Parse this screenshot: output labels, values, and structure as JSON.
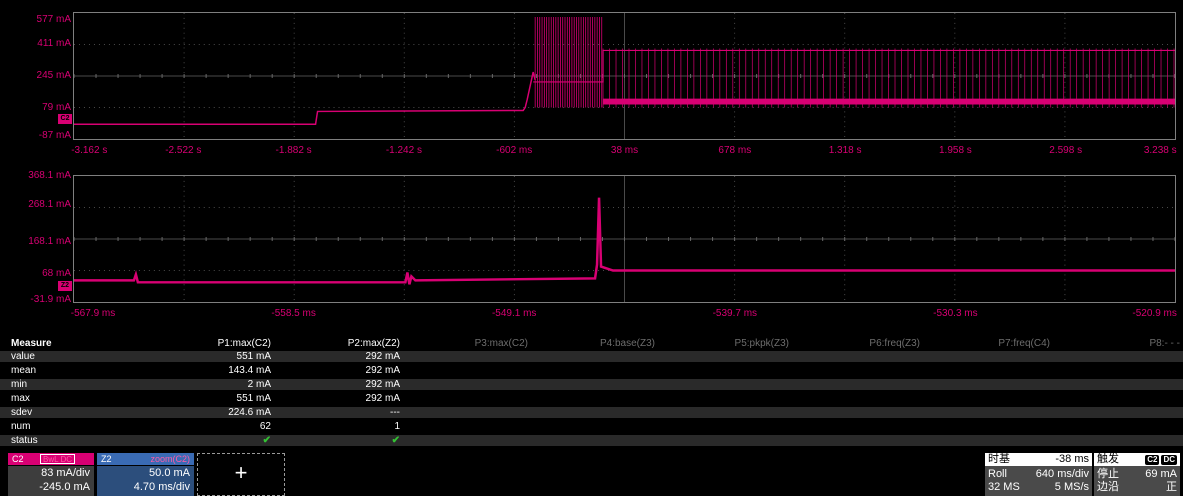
{
  "colors": {
    "trace": "#d80073",
    "background": "#000000",
    "grid": "#7f7f7f",
    "check": "#34c234",
    "zoom_accent": "#3a6bb4"
  },
  "top_grid": {
    "channel_marker": "C2",
    "y_labels": [
      "577 mA",
      "411 mA",
      "245 mA",
      "79 mA",
      "-87 mA"
    ],
    "x_labels": [
      "-3.162 s",
      "-2.522 s",
      "-1.882 s",
      "-1.242 s",
      "-602 ms",
      "38 ms",
      "678 ms",
      "1.318 s",
      "1.958 s",
      "2.598 s",
      "3.238 s"
    ]
  },
  "zoom_grid": {
    "channel_marker": "Z2",
    "y_labels": [
      "368.1 mA",
      "268.1 mA",
      "168.1 mA",
      "68 mA",
      "-31.9 mA"
    ],
    "x_labels": [
      "-567.9 ms",
      "-558.5 ms",
      "-549.1 ms",
      "-539.7 ms",
      "-530.3 ms",
      "-520.9 ms"
    ]
  },
  "measure": {
    "header": "Measure",
    "params": [
      "P1:max(C2)",
      "P2:max(Z2)",
      "P3:max(C2)",
      "P4:base(Z3)",
      "P5:pkpk(Z3)",
      "P6:freq(Z3)",
      "P7:freq(C4)",
      "P8:- - -"
    ],
    "rows": [
      {
        "label": "value",
        "p1": "551 mA",
        "p2": "292 mA"
      },
      {
        "label": "mean",
        "p1": "143.4 mA",
        "p2": "292 mA"
      },
      {
        "label": "min",
        "p1": "2 mA",
        "p2": "292 mA"
      },
      {
        "label": "max",
        "p1": "551 mA",
        "p2": "292 mA"
      },
      {
        "label": "sdev",
        "p1": "224.6 mA",
        "p2": "---"
      },
      {
        "label": "num",
        "p1": "62",
        "p2": "1"
      },
      {
        "label": "status",
        "p1": "✔",
        "p2": "✔"
      }
    ]
  },
  "descriptors": {
    "c2": {
      "name": "C2",
      "tags": "BwL DC",
      "vdiv": "83 mA/div",
      "offset": "-245.0 mA"
    },
    "z2": {
      "name": "Z2",
      "source": "zoom(C2)",
      "vdiv": "50.0 mA",
      "tdiv": "4.70 ms/div"
    },
    "add": "+"
  },
  "timebase": {
    "title": "时基",
    "delay": "-38 ms",
    "mode": "Roll",
    "tdiv": "640 ms/div",
    "samples": "32 MS",
    "rate": "5 MS/s"
  },
  "trigger": {
    "title": "触发",
    "badge1": "C2",
    "badge2": "DC",
    "state": "停止",
    "level": "69 mA",
    "type": "边沿",
    "slope": "正"
  }
}
